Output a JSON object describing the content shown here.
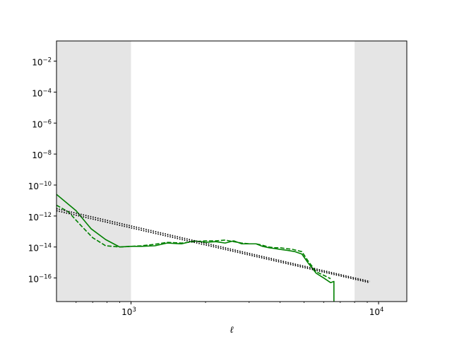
{
  "chart_data": {
    "type": "line",
    "title": "",
    "xlabel": "ℓ",
    "ylabel": "",
    "xscale": "log",
    "yscale": "log",
    "xlim": [
      500,
      13000
    ],
    "ylim": [
      3e-18,
      0.2
    ],
    "grid": false,
    "legend": "none",
    "x_ticks": [
      {
        "value": 1000,
        "base": "10",
        "exp": "3"
      },
      {
        "value": 10000,
        "base": "10",
        "exp": "4"
      }
    ],
    "y_ticks": [
      {
        "value": 1e-16,
        "base": "10",
        "exp": "−16"
      },
      {
        "value": 1e-14,
        "base": "10",
        "exp": "−14"
      },
      {
        "value": 1e-12,
        "base": "10",
        "exp": "−12"
      },
      {
        "value": 1e-10,
        "base": "10",
        "exp": "−10"
      },
      {
        "value": 1e-08,
        "base": "10",
        "exp": "−8"
      },
      {
        "value": 1e-06,
        "base": "10",
        "exp": "−6"
      },
      {
        "value": 0.0001,
        "base": "10",
        "exp": "−4"
      },
      {
        "value": 0.01,
        "base": "10",
        "exp": "−2"
      }
    ],
    "shaded_regions": [
      {
        "x0": 500,
        "x1": 1000,
        "color": "#e5e5e5"
      },
      {
        "x0": 8000,
        "x1": 13000,
        "color": "#e5e5e5"
      }
    ],
    "series": [
      {
        "style": "solid",
        "color": "#008000",
        "x": [
          500,
          600,
          690,
          790,
          900,
          1000,
          1100,
          1250,
          1400,
          1600,
          1800,
          2000,
          2200,
          2400,
          2600,
          2800,
          3000,
          3200,
          3400,
          3600,
          3800,
          4000,
          4300,
          4600,
          4900,
          5200,
          5600,
          6000,
          6400,
          6600,
          6600
        ],
        "y": [
          2.5e-11,
          2.2e-12,
          1.5e-13,
          3e-14,
          1e-14,
          1.1e-14,
          1.1e-14,
          1.2e-14,
          1.8e-14,
          1.6e-14,
          2.5e-14,
          2e-14,
          2.2e-14,
          1.8e-14,
          2.5e-14,
          1.6e-14,
          1.6e-14,
          1.6e-14,
          1.1e-14,
          9e-15,
          8e-15,
          7e-15,
          6e-15,
          5e-15,
          3.5e-15,
          9e-16,
          2e-16,
          1e-16,
          5e-17,
          6e-17,
          3e-18
        ]
      },
      {
        "style": "dashed",
        "color": "#008000",
        "x": [
          500,
          560,
          620,
          700,
          790,
          900,
          1000,
          1100,
          1250,
          1400,
          1600,
          1800,
          2000,
          2200,
          2400,
          2600,
          2800,
          3000,
          3200,
          3400,
          3600,
          3800,
          4000,
          4200,
          4500,
          4900,
          5200,
          5600,
          6000,
          6400
        ],
        "y": [
          5e-12,
          1.8e-12,
          3e-13,
          4e-14,
          1.2e-14,
          1e-14,
          1.1e-14,
          1.2e-14,
          1.5e-14,
          2e-14,
          1.8e-14,
          2.2e-14,
          2.5e-14,
          2.5e-14,
          2.8e-14,
          2.2e-14,
          1.8e-14,
          1.6e-14,
          1.6e-14,
          1.3e-14,
          1e-14,
          9e-15,
          9e-15,
          8e-15,
          7e-15,
          5e-15,
          1.2e-15,
          2.5e-16,
          1.5e-16,
          9e-17
        ]
      },
      {
        "style": "dotted",
        "color": "#000000",
        "x": [
          500,
          9200
        ],
        "y": [
          3e-12,
          6e-17
        ]
      },
      {
        "style": "dotted",
        "color": "#000000",
        "x": [
          500,
          9200
        ],
        "y": [
          2.2e-12,
          5e-17
        ]
      }
    ]
  }
}
